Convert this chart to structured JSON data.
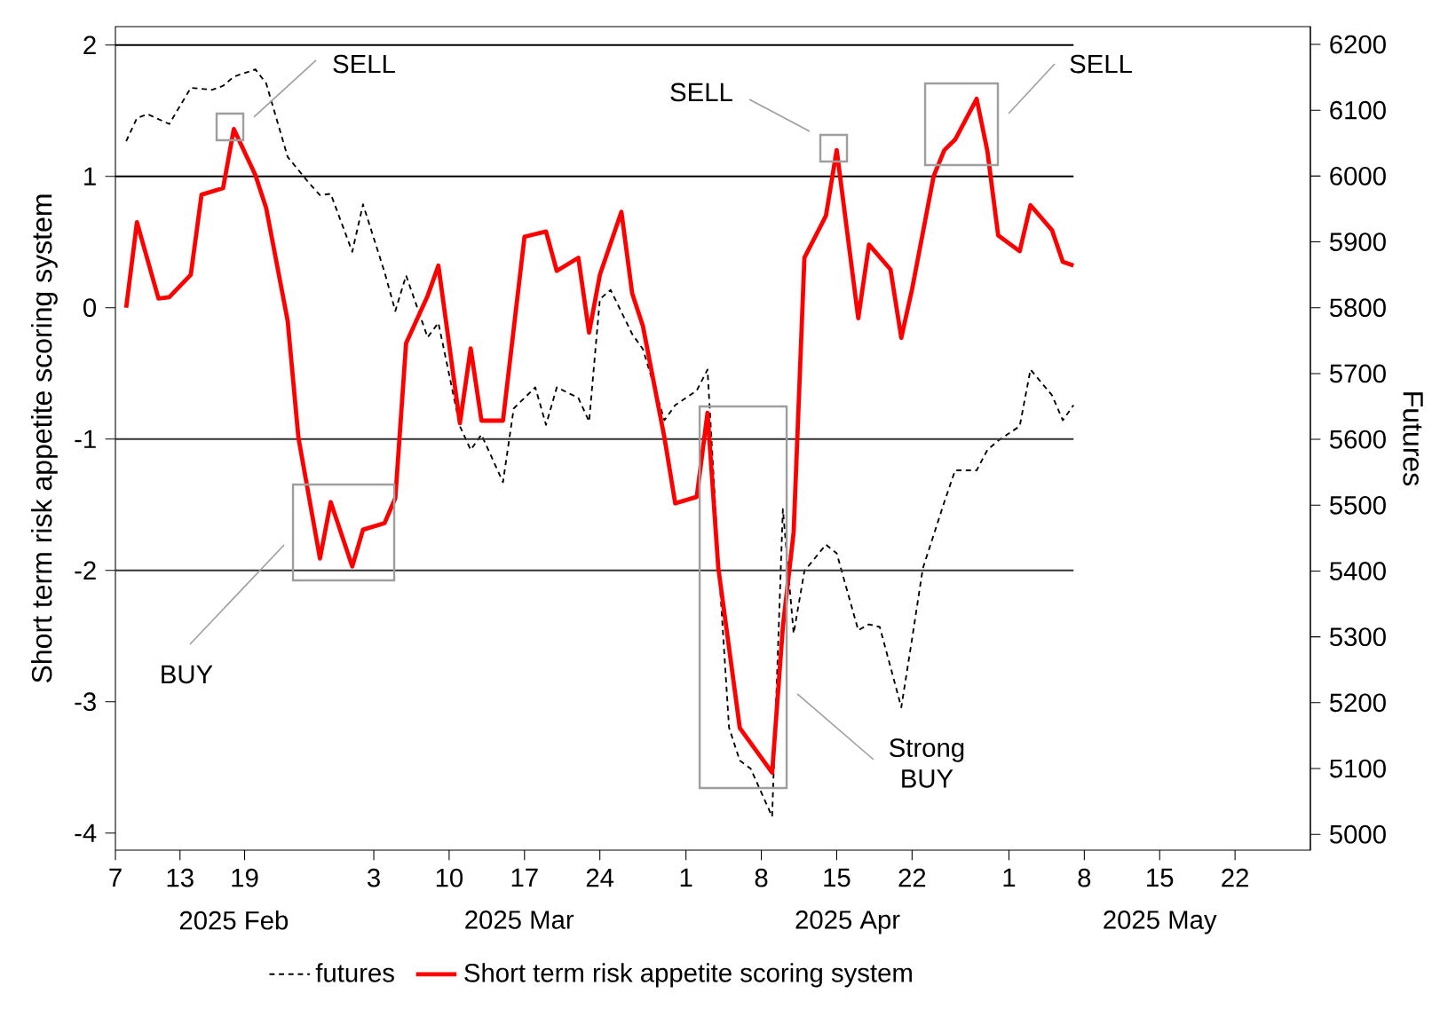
{
  "chart_data": {
    "type": "line",
    "ylabel": "Short term risk appetite scoring system",
    "y2label": "Futures",
    "xlim": [
      "2025-02-07",
      "2025-05-29"
    ],
    "xticks": [
      {
        "value": "2025-02-07",
        "label": "7"
      },
      {
        "value": "2025-02-13",
        "label": "13"
      },
      {
        "value": "2025-02-19",
        "label": "19"
      },
      {
        "value": "2025-03-03",
        "label": "3"
      },
      {
        "value": "2025-03-10",
        "label": "10"
      },
      {
        "value": "2025-03-17",
        "label": "17"
      },
      {
        "value": "2025-03-24",
        "label": "24"
      },
      {
        "value": "2025-04-01",
        "label": "1"
      },
      {
        "value": "2025-04-08",
        "label": "8"
      },
      {
        "value": "2025-04-15",
        "label": "15"
      },
      {
        "value": "2025-04-22",
        "label": "22"
      },
      {
        "value": "2025-05-01",
        "label": "1"
      },
      {
        "value": "2025-05-08",
        "label": "8"
      },
      {
        "value": "2025-05-15",
        "label": "15"
      },
      {
        "value": "2025-05-22",
        "label": "22"
      }
    ],
    "ylim": [
      -4.13,
      2.14
    ],
    "yticks": [
      -4,
      -3,
      -2,
      -1,
      0,
      1,
      2
    ],
    "y2lim": [
      4976,
      6227
    ],
    "y2ticks": [
      5000,
      5100,
      5200,
      5300,
      5400,
      5500,
      5600,
      5700,
      5800,
      5900,
      6000,
      6100,
      6200
    ],
    "legend": "bottom",
    "series": [
      {
        "name": "futures",
        "color": "#000000",
        "axis": "y2",
        "line_style": "dashed",
        "x": [
          "2025-02-08",
          "2025-02-09",
          "2025-02-10",
          "2025-02-12",
          "2025-02-14",
          "2025-02-16",
          "2025-02-17",
          "2025-02-18",
          "2025-02-20",
          "2025-02-21",
          "2025-02-23",
          "2025-02-25",
          "2025-02-26",
          "2025-02-27",
          "2025-03-01",
          "2025-03-02",
          "2025-03-04",
          "2025-03-05",
          "2025-03-06",
          "2025-03-08",
          "2025-03-09",
          "2025-03-11",
          "2025-03-12",
          "2025-03-13",
          "2025-03-15",
          "2025-03-16",
          "2025-03-18",
          "2025-03-19",
          "2025-03-20",
          "2025-03-22",
          "2025-03-23",
          "2025-03-24",
          "2025-03-25",
          "2025-03-27",
          "2025-03-28",
          "2025-03-30",
          "2025-03-31",
          "2025-04-02",
          "2025-04-03",
          "2025-04-04",
          "2025-04-05",
          "2025-04-06",
          "2025-04-07",
          "2025-04-09",
          "2025-04-10",
          "2025-04-11",
          "2025-04-12",
          "2025-04-14",
          "2025-04-15",
          "2025-04-17",
          "2025-04-18",
          "2025-04-19",
          "2025-04-21",
          "2025-04-22",
          "2025-04-23",
          "2025-04-25",
          "2025-04-26",
          "2025-04-28",
          "2025-04-29",
          "2025-04-30",
          "2025-05-02",
          "2025-05-03",
          "2025-05-05",
          "2025-05-06",
          "2025-05-07"
        ],
        "values": [
          6053,
          6088,
          6094,
          6079,
          6134,
          6131,
          6137,
          6151,
          6162,
          6141,
          6029,
          5989,
          5971,
          5973,
          5885,
          5957,
          5854,
          5795,
          5849,
          5755,
          5777,
          5620,
          5584,
          5607,
          5535,
          5647,
          5679,
          5622,
          5679,
          5663,
          5627,
          5813,
          5827,
          5760,
          5737,
          5629,
          5652,
          5674,
          5706,
          5418,
          5162,
          5112,
          5100,
          5027,
          5494,
          5305,
          5400,
          5440,
          5427,
          5310,
          5319,
          5315,
          5193,
          5297,
          5404,
          5505,
          5553,
          5553,
          5584,
          5598,
          5620,
          5706,
          5667,
          5629,
          5652
        ]
      },
      {
        "name": "Short term risk appetite scoring system",
        "color": "#ff0000",
        "axis": "y",
        "line_style": "solid",
        "x": [
          "2025-02-08",
          "2025-02-09",
          "2025-02-11",
          "2025-02-12",
          "2025-02-14",
          "2025-02-15",
          "2025-02-17",
          "2025-02-18",
          "2025-02-20",
          "2025-02-21",
          "2025-02-23",
          "2025-02-24",
          "2025-02-26",
          "2025-02-27",
          "2025-03-01",
          "2025-03-02",
          "2025-03-04",
          "2025-03-05",
          "2025-03-06",
          "2025-03-08",
          "2025-03-09",
          "2025-03-11",
          "2025-03-12",
          "2025-03-13",
          "2025-03-15",
          "2025-03-17",
          "2025-03-19",
          "2025-03-20",
          "2025-03-22",
          "2025-03-23",
          "2025-03-24",
          "2025-03-26",
          "2025-03-27",
          "2025-03-28",
          "2025-03-30",
          "2025-03-31",
          "2025-04-02",
          "2025-04-03",
          "2025-04-04",
          "2025-04-06",
          "2025-04-09",
          "2025-04-10",
          "2025-04-11",
          "2025-04-12",
          "2025-04-14",
          "2025-04-15",
          "2025-04-17",
          "2025-04-18",
          "2025-04-20",
          "2025-04-21",
          "2025-04-22",
          "2025-04-24",
          "2025-04-25",
          "2025-04-26",
          "2025-04-28",
          "2025-04-29",
          "2025-04-30",
          "2025-05-02",
          "2025-05-03",
          "2025-05-05",
          "2025-05-06",
          "2025-05-07"
        ],
        "values": [
          0.0,
          0.65,
          0.07,
          0.08,
          0.25,
          0.86,
          0.91,
          1.36,
          1.01,
          0.76,
          -0.1,
          -0.99,
          -1.91,
          -1.48,
          -1.97,
          -1.69,
          -1.64,
          -1.45,
          -0.27,
          0.09,
          0.32,
          -0.88,
          -0.31,
          -0.86,
          -0.86,
          0.54,
          0.58,
          0.28,
          0.38,
          -0.19,
          0.25,
          0.73,
          0.11,
          -0.14,
          -0.99,
          -1.49,
          -1.44,
          -0.8,
          -1.98,
          -3.2,
          -3.54,
          -2.43,
          -1.71,
          0.38,
          0.7,
          1.2,
          -0.08,
          0.48,
          0.29,
          -0.23,
          0.14,
          1.0,
          1.2,
          1.28,
          1.59,
          1.19,
          0.55,
          0.43,
          0.78,
          0.59,
          0.35,
          0.32
        ]
      }
    ],
    "ref_lines": [
      {
        "axis": "y",
        "value": 2,
        "color": "#000000"
      },
      {
        "axis": "y",
        "value": 1,
        "color": "#000000"
      },
      {
        "axis": "y",
        "value": -1,
        "color": "#333333"
      },
      {
        "axis": "y",
        "value": -2,
        "color": "#333333"
      }
    ],
    "annotations": [
      "SELL",
      "SELL",
      "SELL",
      "BUY",
      "Strong BUY",
      "2025 Feb",
      "2025 Mar",
      "2025 Apr",
      "2025 May"
    ]
  }
}
